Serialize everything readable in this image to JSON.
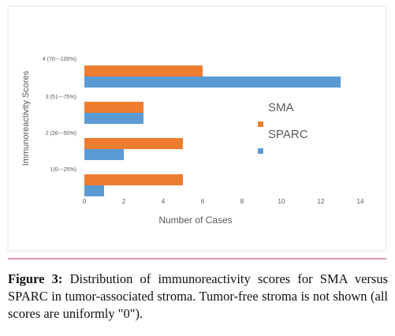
{
  "chart_data": {
    "type": "bar",
    "orientation": "horizontal",
    "ylabel": "Immunoreactivity Scores",
    "xlabel": "Number of Cases",
    "categories": [
      "1(0---25%)",
      "2 (26---50%)",
      "3 (51---75%)",
      "4 (76---100%)"
    ],
    "series": [
      {
        "name": "SMA",
        "color": "#ed7d31",
        "values": [
          5,
          5,
          3,
          6
        ]
      },
      {
        "name": "SPARC",
        "color": "#5b9bd5",
        "values": [
          1,
          2,
          3,
          13
        ]
      }
    ],
    "xlim": [
      0,
      14
    ],
    "xticks": [
      0,
      2,
      4,
      6,
      8,
      10,
      12,
      14
    ],
    "grid": false
  },
  "caption": {
    "label": "Figure 3:",
    "text": "Distribution of immunoreactivity scores for SMA versus SPARC in tumor-associated stroma. Tumor-free stroma is not shown (all scores are uniformly \"0\")."
  }
}
